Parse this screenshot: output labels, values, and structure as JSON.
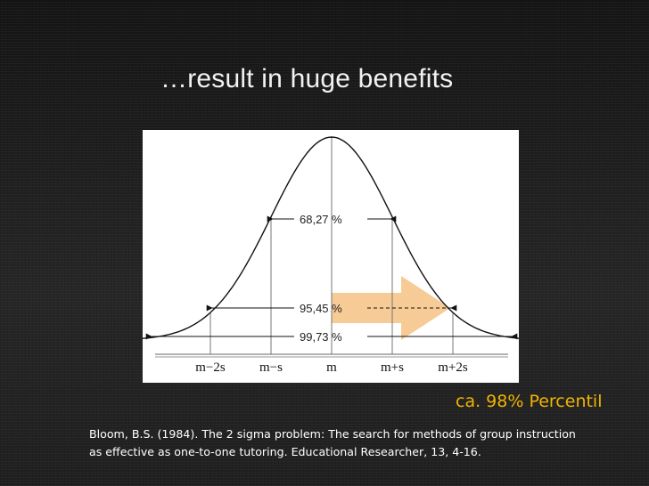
{
  "slide": {
    "title": "…result in huge benefits",
    "percentile_label": "ca. 98% Percentil",
    "citation_line1": "Bloom, B.S. (1984).  The 2 sigma problem: The search for methods of group instruction",
    "citation_line2": "as effective as one-to-one tutoring.  Educational Researcher, 13, 4-16."
  },
  "diagram": {
    "bands": [
      {
        "label": "68,27 %",
        "from_sigma": -1,
        "to_sigma": 1
      },
      {
        "label": "95,45 %",
        "from_sigma": -2,
        "to_sigma": 2
      },
      {
        "label": "99,73 %",
        "from_sigma": -3,
        "to_sigma": 3
      }
    ],
    "ticks": [
      "m−2s",
      "m−s",
      "m",
      "m+s",
      "m+2s"
    ],
    "highlight_arrow": {
      "from_sigma": 0,
      "to_sigma": 2,
      "color": "#f5c890"
    },
    "colors": {
      "accent": "#f0b400",
      "text": "#ffffff",
      "curve": "#111111"
    }
  }
}
